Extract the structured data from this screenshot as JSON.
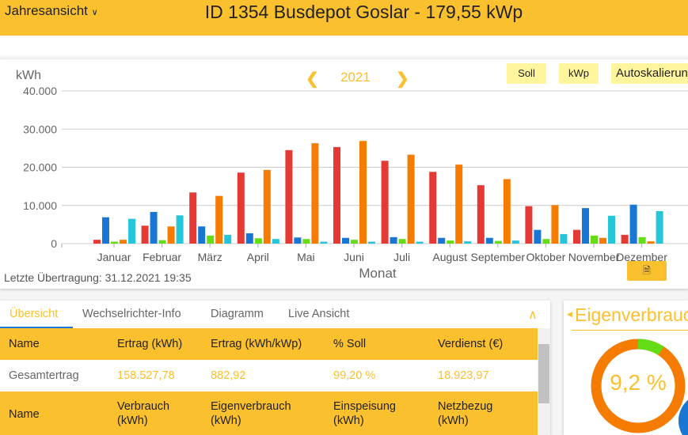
{
  "header": {
    "view_select": "Jahresansicht",
    "title": "ID 1354 Busdepot Goslar - 179,55 kWp"
  },
  "toolbar": {
    "year": "2021",
    "soll": "Soll",
    "kwp": "kWp",
    "autoscale": "Autoskalierung"
  },
  "chart_data": {
    "type": "bar",
    "ylabel": "kWh",
    "xlabel": "Monat",
    "ylim": [
      0,
      40000
    ],
    "yticks": [
      "0",
      "10.000",
      "20.000",
      "30.000",
      "40.000"
    ],
    "grid": true,
    "categories": [
      "Januar",
      "Februar",
      "März",
      "April",
      "Mai",
      "Juni",
      "Juli",
      "August",
      "September",
      "Oktober",
      "November",
      "Dezember"
    ],
    "series": [
      {
        "color": "#e53935",
        "values": [
          1000,
          4700,
          13400,
          18600,
          24500,
          25300,
          21700,
          18800,
          15300,
          9800,
          3600,
          2300
        ]
      },
      {
        "color": "#1976d2",
        "values": [
          6900,
          8300,
          4500,
          2700,
          1600,
          1500,
          1700,
          1500,
          1500,
          3600,
          9300,
          10200
        ]
      },
      {
        "color": "#64dd17",
        "values": [
          500,
          900,
          2100,
          1400,
          1200,
          1000,
          1200,
          800,
          700,
          1200,
          2100,
          1700
        ]
      },
      {
        "color": "#f57c00",
        "values": [
          1000,
          4500,
          12500,
          19300,
          26300,
          26900,
          23300,
          20700,
          16900,
          10100,
          1500,
          600
        ]
      },
      {
        "color": "#26c6da",
        "values": [
          6500,
          7400,
          2300,
          1200,
          500,
          500,
          500,
          600,
          800,
          2500,
          7300,
          8500
        ]
      }
    ]
  },
  "status": {
    "last_transfer": "Letzte Übertragung: 31.12.2021 19:35"
  },
  "tabs": [
    "Übersicht",
    "Wechselrichter-Info",
    "Diagramm",
    "Live Ansicht"
  ],
  "table": {
    "header1": [
      "Name",
      "Ertrag (kWh)",
      "Ertrag (kWh/kWp)",
      "% Soll",
      "Verdienst (€)"
    ],
    "row1": [
      "Gesamtertrag",
      "158.527,78",
      "882,92",
      "99,20 %",
      "18.923,97"
    ],
    "header2": [
      "Name",
      "Verbrauch (kWh)",
      "Eigenverbrauch (kWh)",
      "Einspeisung (kWh)",
      "Netzbezug (kWh)"
    ]
  },
  "eigenverbrauch": {
    "title": "Eigenverbrauch",
    "value": "9,2 %",
    "fraction": 0.092,
    "colors": {
      "own": "#64dd17",
      "feed": "#f57c00"
    }
  }
}
